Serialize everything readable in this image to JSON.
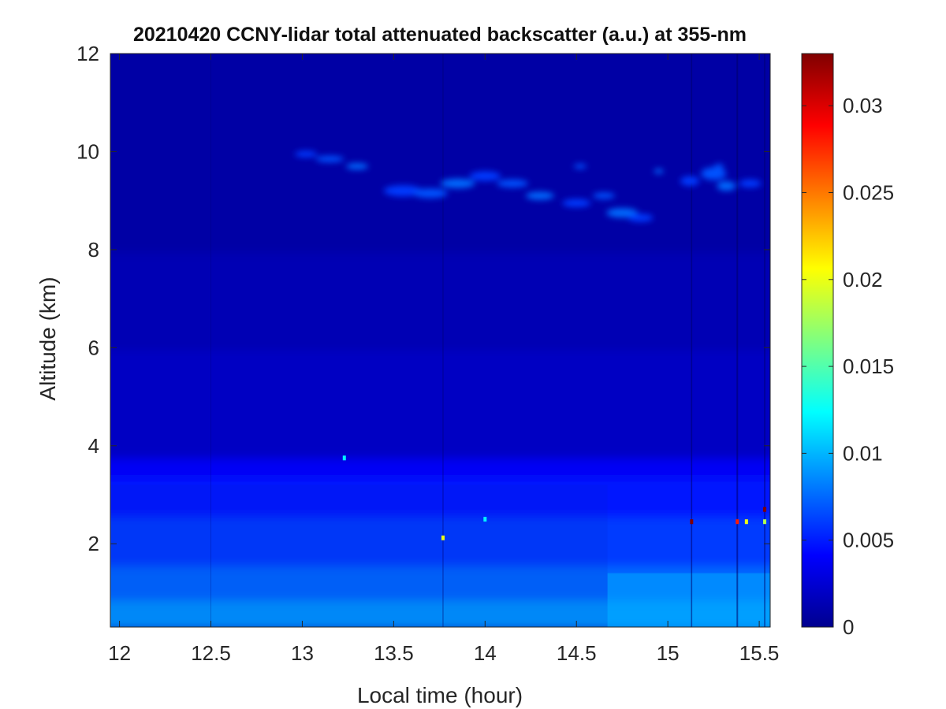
{
  "chart_data": {
    "type": "heatmap",
    "title": "20210420 CCNY-lidar total attenuated backscatter (a.u.) at 355-nm",
    "xlabel": "Local time (hour)",
    "ylabel": "Altitude (km)",
    "xlim": [
      11.95,
      15.56
    ],
    "ylim": [
      0.3,
      12
    ],
    "x_ticks": [
      "12",
      "12.5",
      "13",
      "13.5",
      "14",
      "14.5",
      "15",
      "15.5"
    ],
    "x_tick_values": [
      12,
      12.5,
      13,
      13.5,
      14,
      14.5,
      15,
      15.5
    ],
    "y_ticks": [
      "2",
      "4",
      "6",
      "8",
      "10",
      "12"
    ],
    "y_tick_values": [
      2,
      4,
      6,
      8,
      10,
      12
    ],
    "colorbar": {
      "colormap": "jet",
      "clim": [
        0,
        0.033
      ],
      "ticks": [
        "0",
        "0.005",
        "0.01",
        "0.015",
        "0.02",
        "0.025",
        "0.03"
      ],
      "tick_values": [
        0,
        0.005,
        0.01,
        0.015,
        0.02,
        0.025,
        0.03
      ]
    },
    "features": {
      "boundary_layer": {
        "top_km": 3.8,
        "value_near_surface": 0.009,
        "value_mid": 0.006
      },
      "background": {
        "value_free_troposphere": 0.0022,
        "value_upper": 0.0012
      },
      "cirrus_layer": {
        "x_start": 13.0,
        "x_end": 15.55,
        "alt_top_km": 10.0,
        "alt_bottom_km": 8.6,
        "value": 0.006
      },
      "signal_step_time": 14.67,
      "hotspots": [
        {
          "x": 13.77,
          "y": 2.12,
          "value": 0.02
        },
        {
          "x": 14.0,
          "y": 2.5,
          "value": 0.012
        },
        {
          "x": 13.23,
          "y": 3.75,
          "value": 0.012
        },
        {
          "x": 15.13,
          "y": 2.45,
          "value": 0.033
        },
        {
          "x": 15.38,
          "y": 2.45,
          "value": 0.028
        },
        {
          "x": 15.43,
          "y": 2.45,
          "value": 0.02
        },
        {
          "x": 15.53,
          "y": 2.7,
          "value": 0.033
        },
        {
          "x": 15.53,
          "y": 2.45,
          "value": 0.018
        }
      ]
    }
  }
}
